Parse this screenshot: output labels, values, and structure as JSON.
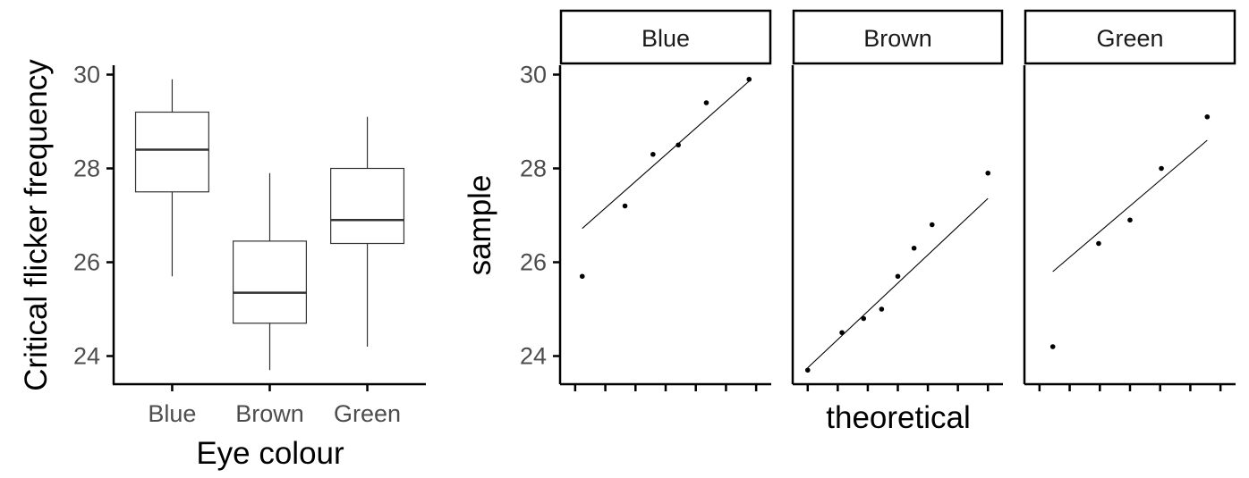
{
  "chart_data": [
    {
      "type": "box",
      "xlabel": "Eye colour",
      "ylabel": "Critical flicker frequency",
      "ylim": [
        23.4,
        30.2
      ],
      "yticks": [
        24,
        26,
        28,
        30
      ],
      "categories": [
        "Blue",
        "Brown",
        "Green"
      ],
      "boxes": [
        {
          "category": "Blue",
          "min": 25.7,
          "q1": 27.5,
          "median": 28.4,
          "q3": 29.2,
          "max": 29.9
        },
        {
          "category": "Brown",
          "min": 23.7,
          "q1": 24.7,
          "median": 25.35,
          "q3": 26.45,
          "max": 27.9
        },
        {
          "category": "Green",
          "min": 24.2,
          "q1": 26.4,
          "median": 26.9,
          "q3": 28.0,
          "max": 29.1
        }
      ],
      "grid": false
    },
    {
      "type": "scatter",
      "subtype": "qq-plot",
      "xlabel": "theoretical",
      "ylabel": "sample",
      "ylim": [
        23.4,
        30.2
      ],
      "yticks": [
        24,
        26,
        28,
        30
      ],
      "xlim": [
        -1.75,
        1.75
      ],
      "xticks": [
        -1.5,
        -1,
        -0.5,
        0,
        0.5,
        1,
        1.5
      ],
      "facets": [
        {
          "label": "Blue",
          "points": [
            [
              -1.383,
              25.7
            ],
            [
              -0.674,
              27.2
            ],
            [
              -0.21,
              28.3
            ],
            [
              0.21,
              28.5
            ],
            [
              0.674,
              29.4
            ],
            [
              1.383,
              29.9
            ]
          ],
          "line": [
            [
              -1.383,
              26.72
            ],
            [
              1.383,
              29.86
            ]
          ]
        },
        {
          "label": "Brown",
          "points": [
            [
              -1.5,
              23.7
            ],
            [
              -0.93,
              24.5
            ],
            [
              -0.57,
              24.8
            ],
            [
              -0.27,
              25.0
            ],
            [
              0.0,
              25.7
            ],
            [
              0.27,
              26.3
            ],
            [
              0.57,
              26.8
            ],
            [
              1.5,
              27.9
            ]
          ],
          "line": [
            [
              -1.5,
              23.75
            ],
            [
              1.5,
              27.36
            ]
          ]
        },
        {
          "label": "Green",
          "points": [
            [
              -1.28,
              24.2
            ],
            [
              -0.52,
              26.4
            ],
            [
              0.0,
              26.9
            ],
            [
              0.52,
              28.0
            ],
            [
              1.28,
              29.1
            ]
          ],
          "line": [
            [
              -1.28,
              25.8
            ],
            [
              1.28,
              28.6
            ]
          ]
        }
      ],
      "grid": false
    }
  ]
}
